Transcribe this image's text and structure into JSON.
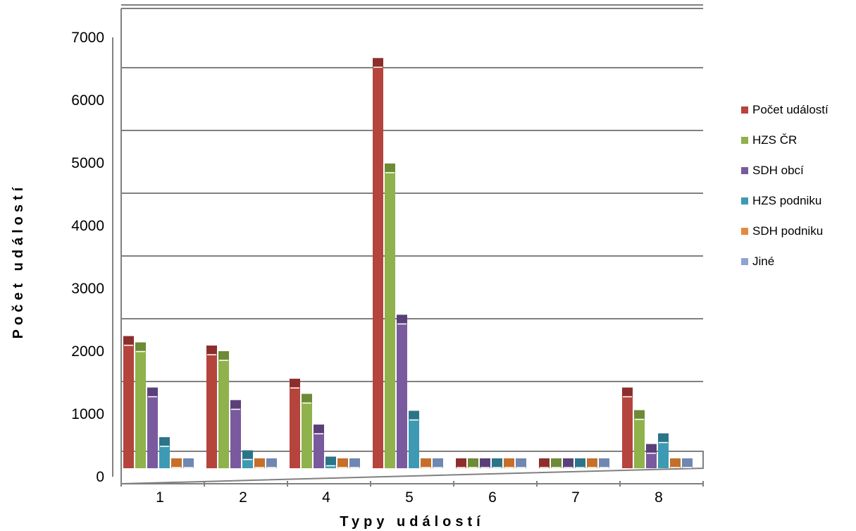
{
  "chart_data": {
    "type": "bar",
    "title": "",
    "xlabel": "Typy událostí",
    "ylabel": "Počet událostí",
    "ylim": [
      0,
      7000
    ],
    "yticks": [
      "0",
      "1000",
      "2000",
      "3000",
      "4000",
      "5000",
      "6000",
      "7000"
    ],
    "categories": [
      "1",
      "2",
      "4",
      "5",
      "6",
      "7",
      "8"
    ],
    "series": [
      {
        "name": "Počet událostí",
        "color": "#b5443d",
        "cap": "#8c2f2c",
        "values": [
          2150,
          2000,
          1470,
          6580,
          0,
          0,
          1330
        ]
      },
      {
        "name": "HZS ČR",
        "color": "#8fb24c",
        "cap": "#6d8a36",
        "values": [
          2050,
          1910,
          1230,
          4900,
          0,
          0,
          970
        ]
      },
      {
        "name": "SDH obcí",
        "color": "#7a5a9e",
        "cap": "#5a4078",
        "values": [
          1330,
          1130,
          740,
          2490,
          0,
          0,
          430
        ]
      },
      {
        "name": "HZS podniku",
        "color": "#3e9ab3",
        "cap": "#2c7488",
        "values": [
          540,
          330,
          230,
          960,
          0,
          0,
          600
        ]
      },
      {
        "name": "SDH podniku",
        "color": "#e38a3f",
        "cap": "#c56f2a",
        "values": [
          0,
          0,
          0,
          0,
          0,
          0,
          0
        ]
      },
      {
        "name": "Jiné",
        "color": "#8ea6cf",
        "cap": "#6f87b1",
        "values": [
          0,
          0,
          0,
          0,
          0,
          0,
          0
        ]
      }
    ],
    "grid": true,
    "legend_position": "right"
  }
}
